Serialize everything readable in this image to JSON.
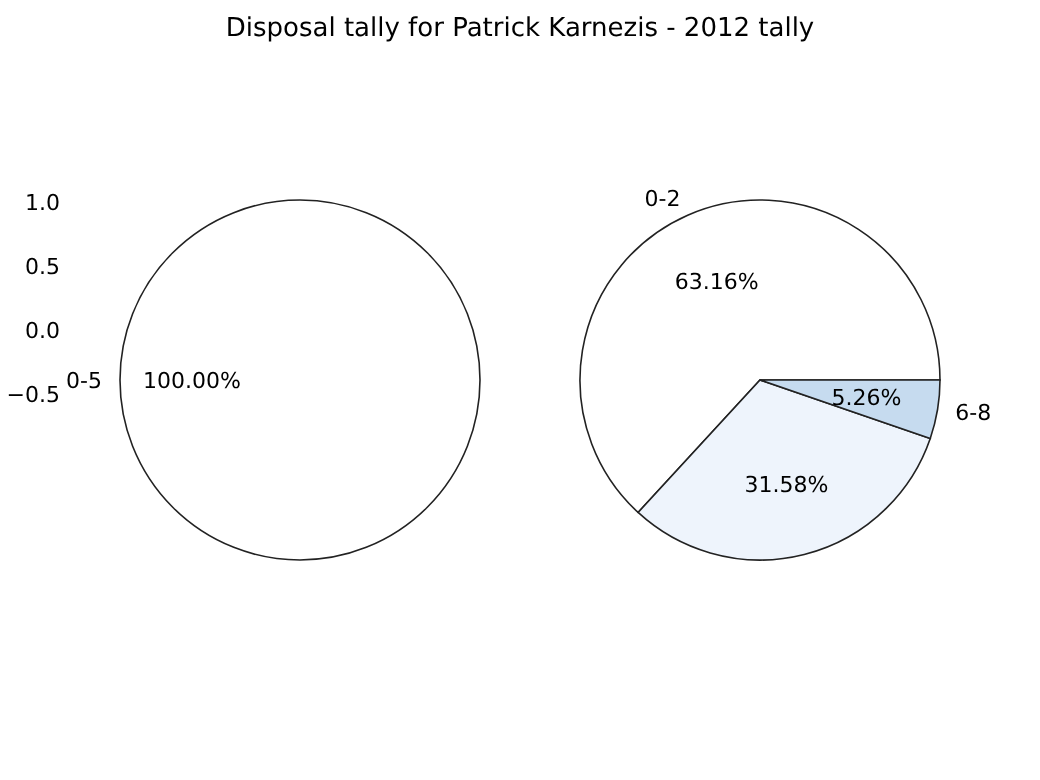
{
  "chart_data": [
    {
      "type": "pie",
      "title": "Disposal tally for Patrick Karnezis - 2012 tally",
      "categories": [
        "0-5"
      ],
      "values": [
        100
      ],
      "value_labels": [
        "100.00%"
      ],
      "colors": [
        "#ffffff"
      ],
      "annotations": [
        "1.0",
        "0.5",
        "0.0",
        "−0.5"
      ]
    },
    {
      "type": "pie",
      "categories": [
        "0-2",
        null,
        "6-8"
      ],
      "values": [
        63.16,
        31.58,
        5.26
      ],
      "value_labels": [
        "63.16%",
        "31.58%",
        "5.26%"
      ],
      "colors": [
        "#ffffff",
        "#eef4fc",
        "#c6dbef"
      ]
    }
  ]
}
